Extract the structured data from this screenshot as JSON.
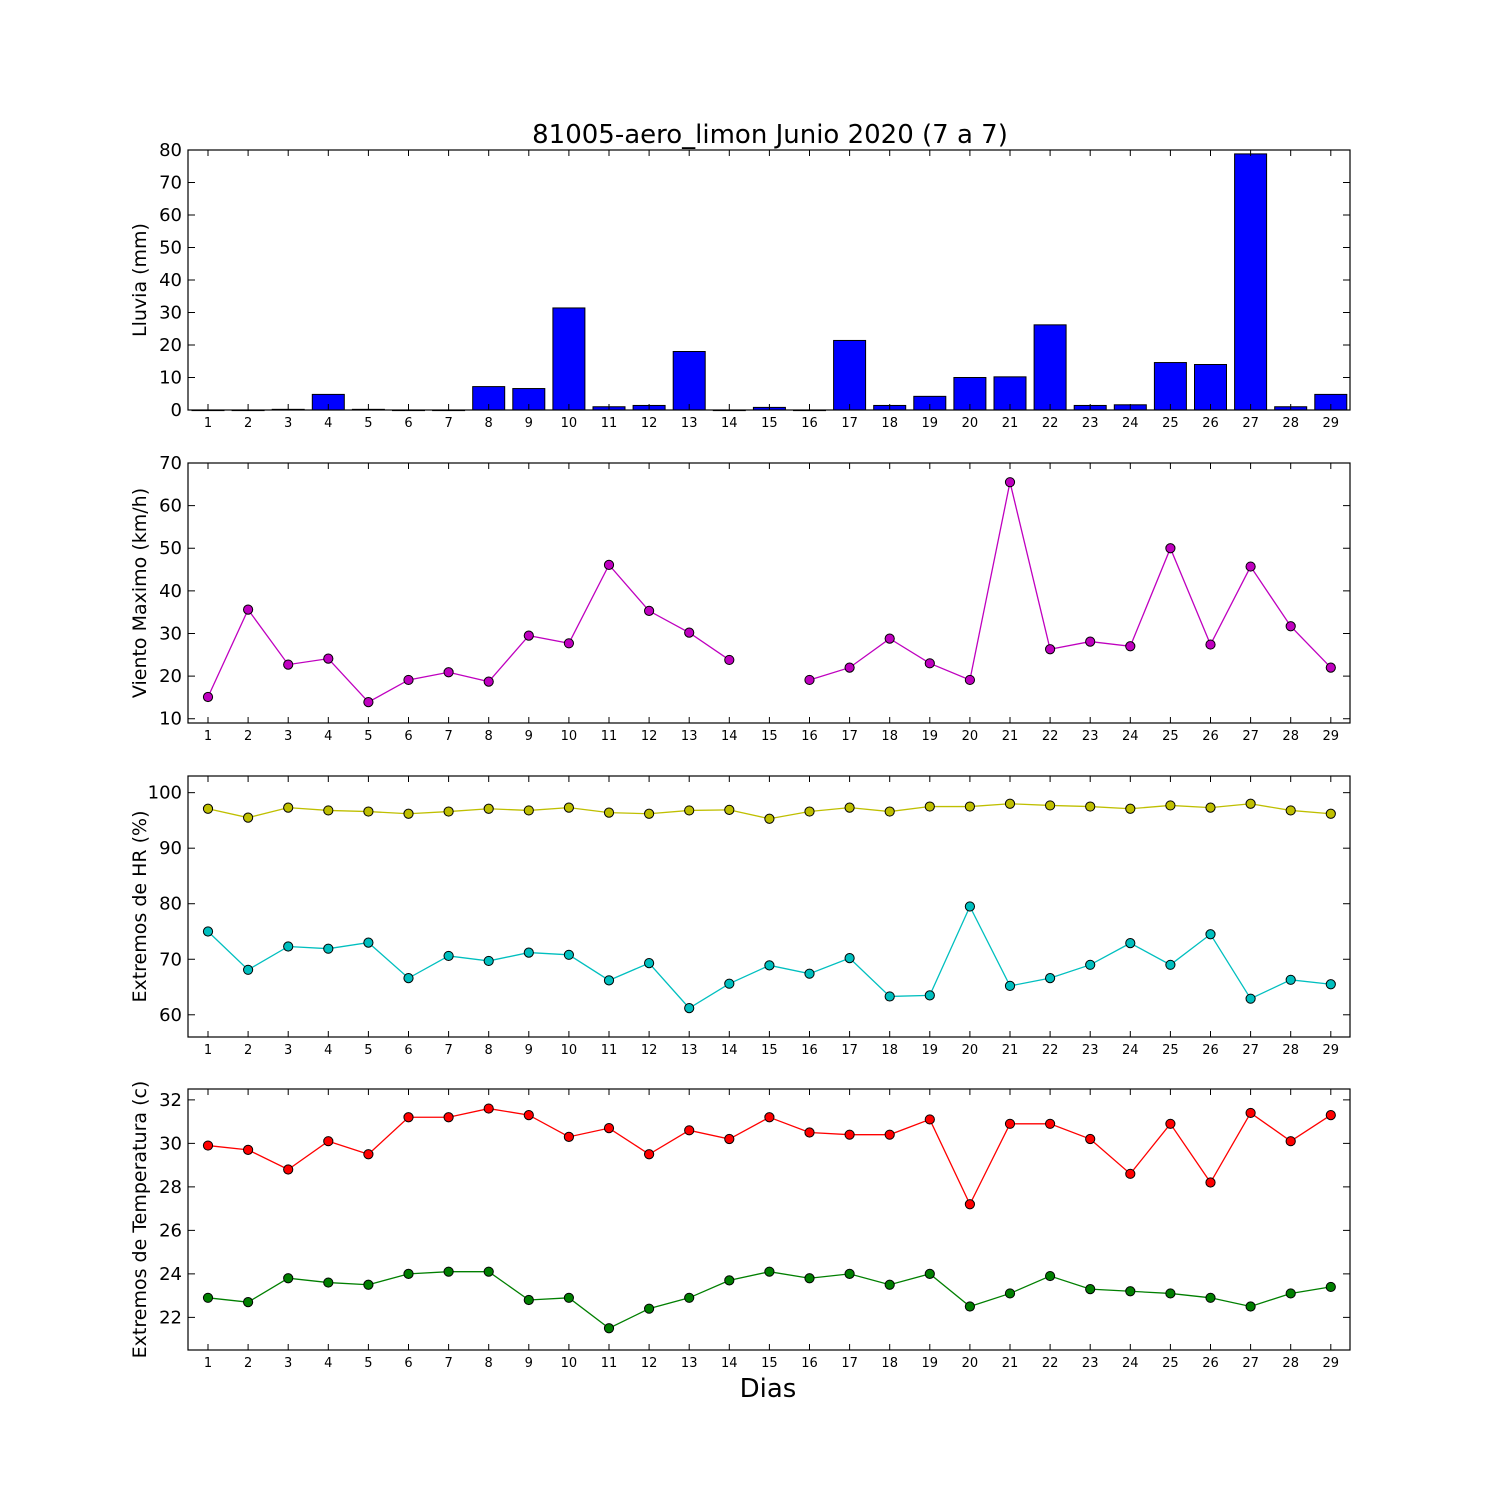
{
  "chart_data": {
    "title": "81005-aero_limon Junio 2020  (7 a 7)",
    "xlabel": "Dias",
    "days": [
      1,
      2,
      3,
      4,
      5,
      6,
      7,
      8,
      9,
      10,
      11,
      12,
      13,
      14,
      15,
      16,
      17,
      18,
      19,
      20,
      21,
      22,
      23,
      24,
      25,
      26,
      27,
      28,
      29
    ],
    "panels": [
      {
        "id": "lluvia",
        "type": "bar",
        "ylabel": "Lluvia (mm)",
        "ylim": [
          0,
          80
        ],
        "yticks": [
          0,
          10,
          20,
          30,
          40,
          50,
          60,
          70,
          80
        ],
        "series": [
          {
            "color": "#0000ff",
            "values": [
              0,
              0,
              0.2,
              4.8,
              0.2,
              0,
              0,
              7.2,
              6.6,
              31.4,
              1.0,
              1.4,
              18.0,
              0,
              0.8,
              0,
              21.4,
              1.4,
              4.2,
              10.0,
              10.2,
              26.2,
              1.4,
              1.6,
              14.6,
              14.0,
              78.8,
              1.0,
              4.8
            ]
          }
        ]
      },
      {
        "id": "viento",
        "type": "line",
        "ylabel": "Viento Maximo (km/h)",
        "ylim": [
          9,
          70
        ],
        "yticks": [
          10,
          20,
          30,
          40,
          50,
          60,
          70
        ],
        "series": [
          {
            "color": "#bf00bf",
            "values": [
              15.1,
              35.6,
              22.7,
              24.1,
              13.9,
              19.1,
              20.9,
              18.7,
              29.5,
              27.7,
              46.1,
              35.3,
              30.2,
              23.8,
              null,
              19.1,
              22.0,
              28.8,
              23.0,
              19.1,
              65.5,
              26.3,
              28.1,
              27.0,
              50.0,
              27.4,
              45.7,
              31.7,
              22.0
            ]
          }
        ]
      },
      {
        "id": "hr",
        "type": "line",
        "ylabel": "Extremos de HR (%)",
        "ylim": [
          56,
          103
        ],
        "yticks": [
          60,
          70,
          80,
          90,
          100
        ],
        "series": [
          {
            "color": "#bfbf00",
            "values": [
              97.1,
              95.5,
              97.3,
              96.8,
              96.6,
              96.2,
              96.6,
              97.1,
              96.8,
              97.3,
              96.4,
              96.2,
              96.8,
              96.9,
              95.3,
              96.6,
              97.3,
              96.6,
              97.5,
              97.5,
              98.0,
              97.7,
              97.5,
              97.1,
              97.7,
              97.3,
              98.0,
              96.8,
              96.2
            ]
          },
          {
            "color": "#00bfbf",
            "values": [
              75.0,
              68.1,
              72.3,
              71.9,
              73.0,
              66.6,
              70.6,
              69.7,
              71.2,
              70.8,
              66.2,
              69.3,
              61.2,
              65.6,
              68.9,
              67.4,
              70.2,
              63.3,
              63.5,
              79.5,
              65.2,
              66.6,
              69.0,
              72.9,
              69.0,
              74.5,
              62.9,
              66.3,
              65.5
            ]
          }
        ]
      },
      {
        "id": "temperatura",
        "type": "line",
        "ylabel": "Extremos de Temperatura (c)",
        "ylim": [
          20.5,
          32.5
        ],
        "yticks": [
          22,
          24,
          26,
          28,
          30,
          32
        ],
        "series": [
          {
            "color": "#ff0000",
            "values": [
              29.9,
              29.7,
              28.8,
              30.1,
              29.5,
              31.2,
              31.2,
              31.6,
              31.3,
              30.3,
              30.7,
              29.5,
              30.6,
              30.2,
              31.2,
              30.5,
              30.4,
              30.4,
              31.1,
              27.2,
              30.9,
              30.9,
              30.2,
              28.6,
              30.9,
              28.2,
              31.4,
              30.1,
              31.3
            ]
          },
          {
            "color": "#007f00",
            "values": [
              22.9,
              22.7,
              23.8,
              23.6,
              23.5,
              24.0,
              24.1,
              24.1,
              22.8,
              22.9,
              21.5,
              22.4,
              22.9,
              23.7,
              24.1,
              23.8,
              24.0,
              23.5,
              24.0,
              22.5,
              23.1,
              23.9,
              23.3,
              23.2,
              23.1,
              22.9,
              22.5,
              23.1,
              23.4
            ]
          }
        ]
      }
    ]
  }
}
